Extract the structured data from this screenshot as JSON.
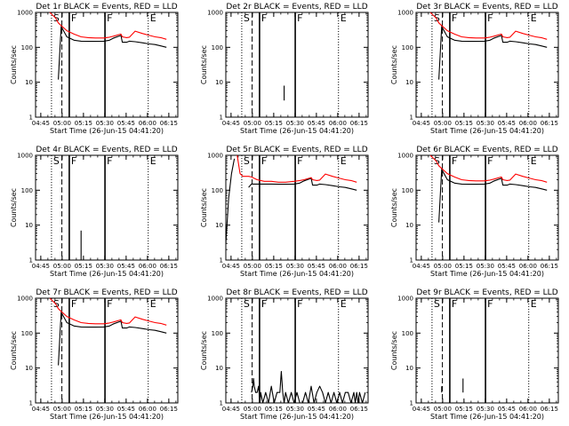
{
  "figure": {
    "x_tick_labels": [
      "04:45",
      "05:00",
      "05:15",
      "05:30",
      "05:45",
      "06:00",
      "06:15"
    ],
    "y_tick_labels": [
      "1",
      "10",
      "100",
      "1000"
    ],
    "xlabel": "Start Time (26-Jun-15 04:41:20)",
    "ylabel": "Counts/sec",
    "markers": [
      "S",
      "F",
      "F",
      "E"
    ],
    "colors": {
      "events": "#000000",
      "lld": "#ff0000",
      "axes": "#000000"
    }
  },
  "chart_data": [
    {
      "type": "line",
      "title": "Det 1r BLACK = Events, RED = LLD",
      "x_unit": "minutes after 04:41:20",
      "xlim": [
        0,
        100
      ],
      "ylim": [
        1,
        1000
      ],
      "yscale": "log",
      "series": [
        {
          "name": "Events",
          "x": [
            10,
            14,
            16,
            18,
            22,
            27,
            32,
            37,
            42,
            48,
            52,
            55,
            60,
            61,
            64,
            66,
            70,
            75,
            80,
            84,
            88,
            92
          ],
          "y": [
            null,
            null,
            12,
            400,
            200,
            160,
            150,
            148,
            148,
            150,
            160,
            185,
            220,
            140,
            140,
            150,
            145,
            135,
            125,
            120,
            110,
            100
          ]
        },
        {
          "name": "LLD",
          "x": [
            10,
            14,
            16,
            18,
            22,
            27,
            32,
            37,
            42,
            48,
            52,
            55,
            60,
            61,
            64,
            66,
            70,
            75,
            80,
            84,
            88,
            92
          ],
          "y": [
            1000,
            700,
            500,
            420,
            300,
            240,
            200,
            190,
            185,
            185,
            195,
            210,
            240,
            200,
            190,
            195,
            290,
            250,
            220,
            200,
            190,
            170
          ]
        }
      ],
      "vlines": [
        {
          "x": 11.2,
          "style": "dotted"
        },
        {
          "x": 18.5,
          "style": "dashed"
        },
        {
          "x": 23.7,
          "style": "solid"
        },
        {
          "x": 48.8,
          "style": "solid"
        },
        {
          "x": 79.2,
          "style": "dotted"
        }
      ]
    },
    {
      "type": "line",
      "title": "Det 2r BLACK = Events, RED = LLD",
      "x_unit": "minutes after 04:41:20",
      "xlim": [
        0,
        100
      ],
      "ylim": [
        1,
        1000
      ],
      "yscale": "log",
      "series": [
        {
          "name": "Events",
          "x": [
            41,
            41
          ],
          "y": [
            3,
            8
          ]
        },
        {
          "name": "LLD",
          "x": [],
          "y": []
        }
      ],
      "vlines": [
        {
          "x": 11.2,
          "style": "dotted"
        },
        {
          "x": 18.5,
          "style": "dashed"
        },
        {
          "x": 23.7,
          "style": "solid"
        },
        {
          "x": 48.8,
          "style": "solid"
        },
        {
          "x": 79.2,
          "style": "dotted"
        }
      ]
    },
    {
      "type": "line",
      "title": "Det 3r BLACK = Events, RED = LLD",
      "x_unit": "minutes after 04:41:20",
      "xlim": [
        0,
        100
      ],
      "ylim": [
        1,
        1000
      ],
      "yscale": "log",
      "series": [
        {
          "name": "Events",
          "x": [
            10,
            14,
            16,
            18,
            22,
            27,
            32,
            37,
            42,
            48,
            52,
            55,
            60,
            61,
            64,
            66,
            70,
            75,
            80,
            84,
            88,
            92
          ],
          "y": [
            null,
            null,
            12,
            400,
            200,
            160,
            150,
            148,
            148,
            150,
            160,
            185,
            220,
            140,
            140,
            150,
            145,
            135,
            125,
            120,
            110,
            100
          ]
        },
        {
          "name": "LLD",
          "x": [
            10,
            14,
            16,
            18,
            22,
            27,
            32,
            37,
            42,
            48,
            52,
            55,
            60,
            61,
            64,
            66,
            70,
            75,
            80,
            84,
            88,
            92
          ],
          "y": [
            1000,
            700,
            500,
            420,
            300,
            240,
            200,
            190,
            185,
            185,
            195,
            210,
            240,
            200,
            190,
            195,
            290,
            250,
            220,
            200,
            190,
            170
          ]
        }
      ],
      "vlines": [
        {
          "x": 11.2,
          "style": "dotted"
        },
        {
          "x": 18.5,
          "style": "dashed"
        },
        {
          "x": 23.7,
          "style": "solid"
        },
        {
          "x": 48.8,
          "style": "solid"
        },
        {
          "x": 79.2,
          "style": "dotted"
        }
      ]
    },
    {
      "type": "line",
      "title": "Det 4r BLACK = Events, RED = LLD",
      "x_unit": "minutes after 04:41:20",
      "xlim": [
        0,
        100
      ],
      "ylim": [
        1,
        1000
      ],
      "yscale": "log",
      "series": [
        {
          "name": "Events",
          "x": [
            32,
            32
          ],
          "y": [
            1,
            7
          ]
        },
        {
          "name": "LLD",
          "x": [],
          "y": []
        }
      ],
      "vlines": [
        {
          "x": 11.2,
          "style": "dotted"
        },
        {
          "x": 18.5,
          "style": "dashed"
        },
        {
          "x": 23.7,
          "style": "solid"
        },
        {
          "x": 48.8,
          "style": "solid"
        },
        {
          "x": 79.2,
          "style": "dotted"
        }
      ]
    },
    {
      "type": "line",
      "title": "Det 5r BLACK = Events, RED = LLD",
      "x_unit": "minutes after 04:41:20",
      "xlim": [
        0,
        100
      ],
      "ylim": [
        1,
        1000
      ],
      "yscale": "log",
      "series": [
        {
          "name": "Events",
          "x": [
            0,
            2,
            4,
            6,
            8,
            10,
            16,
            18,
            22,
            27,
            32,
            37,
            42,
            48,
            52,
            55,
            60,
            61,
            64,
            66,
            70,
            75,
            80,
            84,
            88,
            92
          ],
          "y": [
            3,
            60,
            300,
            800,
            null,
            null,
            120,
            150,
            150,
            150,
            150,
            148,
            148,
            150,
            160,
            185,
            220,
            140,
            140,
            150,
            145,
            135,
            125,
            120,
            110,
            100
          ]
        },
        {
          "name": "LLD",
          "x": [
            8,
            10,
            12,
            16,
            18,
            22,
            27,
            32,
            37,
            42,
            48,
            52,
            55,
            60,
            61,
            64,
            66,
            70,
            75,
            80,
            84,
            88,
            92
          ],
          "y": [
            1000,
            300,
            250,
            250,
            240,
            200,
            180,
            180,
            170,
            170,
            180,
            190,
            200,
            230,
            200,
            190,
            195,
            290,
            250,
            220,
            200,
            190,
            170
          ]
        }
      ],
      "vlines": [
        {
          "x": 11.2,
          "style": "dotted"
        },
        {
          "x": 18.5,
          "style": "dashed"
        },
        {
          "x": 23.7,
          "style": "solid"
        },
        {
          "x": 48.8,
          "style": "solid"
        },
        {
          "x": 79.2,
          "style": "dotted"
        }
      ]
    },
    {
      "type": "line",
      "title": "Det 6r BLACK = Events, RED = LLD",
      "x_unit": "minutes after 04:41:20",
      "xlim": [
        0,
        100
      ],
      "ylim": [
        1,
        1000
      ],
      "yscale": "log",
      "series": [
        {
          "name": "Events",
          "x": [
            10,
            14,
            16,
            18,
            22,
            27,
            32,
            37,
            42,
            48,
            52,
            55,
            60,
            61,
            64,
            66,
            70,
            75,
            80,
            84,
            88,
            92
          ],
          "y": [
            null,
            null,
            12,
            400,
            200,
            160,
            150,
            148,
            148,
            150,
            160,
            185,
            220,
            140,
            140,
            150,
            145,
            135,
            125,
            120,
            110,
            100
          ]
        },
        {
          "name": "LLD",
          "x": [
            10,
            14,
            16,
            18,
            22,
            27,
            32,
            37,
            42,
            48,
            52,
            55,
            60,
            61,
            64,
            66,
            70,
            75,
            80,
            84,
            88,
            92
          ],
          "y": [
            1000,
            700,
            500,
            420,
            300,
            240,
            200,
            190,
            185,
            185,
            195,
            210,
            240,
            200,
            190,
            195,
            290,
            250,
            220,
            200,
            190,
            170
          ]
        }
      ],
      "vlines": [
        {
          "x": 11.2,
          "style": "dotted"
        },
        {
          "x": 18.5,
          "style": "dashed"
        },
        {
          "x": 23.7,
          "style": "solid"
        },
        {
          "x": 48.8,
          "style": "solid"
        },
        {
          "x": 79.2,
          "style": "dotted"
        }
      ]
    },
    {
      "type": "line",
      "title": "Det 7r BLACK = Events, RED = LLD",
      "x_unit": "minutes after 04:41:20",
      "xlim": [
        0,
        100
      ],
      "ylim": [
        1,
        1000
      ],
      "yscale": "log",
      "series": [
        {
          "name": "Events",
          "x": [
            10,
            14,
            16,
            18,
            22,
            27,
            32,
            37,
            42,
            48,
            52,
            55,
            60,
            61,
            64,
            66,
            70,
            75,
            80,
            84,
            88,
            92
          ],
          "y": [
            null,
            null,
            12,
            400,
            200,
            160,
            150,
            148,
            148,
            150,
            160,
            185,
            220,
            140,
            140,
            150,
            145,
            135,
            125,
            120,
            110,
            100
          ]
        },
        {
          "name": "LLD",
          "x": [
            10,
            14,
            16,
            18,
            22,
            27,
            32,
            37,
            42,
            48,
            52,
            55,
            60,
            61,
            64,
            66,
            70,
            75,
            80,
            84,
            88,
            92
          ],
          "y": [
            1000,
            700,
            500,
            420,
            300,
            240,
            200,
            190,
            185,
            185,
            195,
            210,
            240,
            200,
            190,
            195,
            290,
            250,
            220,
            200,
            190,
            170
          ]
        }
      ],
      "vlines": [
        {
          "x": 11.2,
          "style": "dotted"
        },
        {
          "x": 18.5,
          "style": "dashed"
        },
        {
          "x": 23.7,
          "style": "solid"
        },
        {
          "x": 48.8,
          "style": "solid"
        },
        {
          "x": 79.2,
          "style": "dotted"
        }
      ]
    },
    {
      "type": "line",
      "title": "Det 8r BLACK = Events, RED = LLD",
      "x_unit": "minutes after 04:41:20",
      "xlim": [
        0,
        100
      ],
      "ylim": [
        1,
        1000
      ],
      "yscale": "log",
      "series": [
        {
          "name": "Events",
          "x": [
            18,
            19,
            19.5,
            20,
            21,
            22,
            23,
            24,
            24.5,
            26,
            28,
            30,
            32,
            34,
            36,
            38,
            39,
            40,
            41,
            42,
            44,
            46,
            48,
            50,
            52,
            54,
            56,
            58,
            60,
            62,
            64,
            66,
            68,
            70,
            72,
            74,
            76,
            78,
            80,
            82,
            84,
            86,
            88,
            90,
            91,
            92,
            93,
            94,
            96,
            98
          ],
          "y": [
            2,
            3,
            5,
            3,
            2,
            2,
            3,
            1,
            2,
            1,
            2,
            1,
            3,
            1,
            2,
            2,
            8,
            2,
            1,
            2,
            1,
            2,
            1,
            2,
            1,
            1,
            2,
            1,
            3,
            1,
            2,
            3,
            2,
            1,
            2,
            1,
            2,
            1,
            2,
            1,
            2,
            2,
            1,
            2,
            1,
            2,
            1,
            2,
            1,
            2
          ]
        },
        {
          "name": "LLD",
          "x": [],
          "y": []
        }
      ],
      "vlines": [
        {
          "x": 11.2,
          "style": "dotted"
        },
        {
          "x": 18.5,
          "style": "dashed"
        },
        {
          "x": 23.7,
          "style": "solid"
        },
        {
          "x": 48.8,
          "style": "solid"
        },
        {
          "x": 79.2,
          "style": "dotted"
        }
      ]
    },
    {
      "type": "line",
      "title": "Det 9r BLACK = Events, RED = LLD",
      "x_unit": "minutes after 04:41:20",
      "xlim": [
        0,
        100
      ],
      "ylim": [
        1,
        1000
      ],
      "yscale": "log",
      "series": [
        {
          "name": "Events",
          "x": [
            18,
            18,
            18,
            33,
            33
          ],
          "y": [
            2,
            3,
            null,
            2,
            5
          ]
        },
        {
          "name": "LLD",
          "x": [],
          "y": []
        }
      ],
      "vlines": [
        {
          "x": 11.2,
          "style": "dotted"
        },
        {
          "x": 18.5,
          "style": "dashed"
        },
        {
          "x": 23.7,
          "style": "solid"
        },
        {
          "x": 48.8,
          "style": "solid"
        },
        {
          "x": 79.2,
          "style": "dotted"
        }
      ]
    }
  ]
}
